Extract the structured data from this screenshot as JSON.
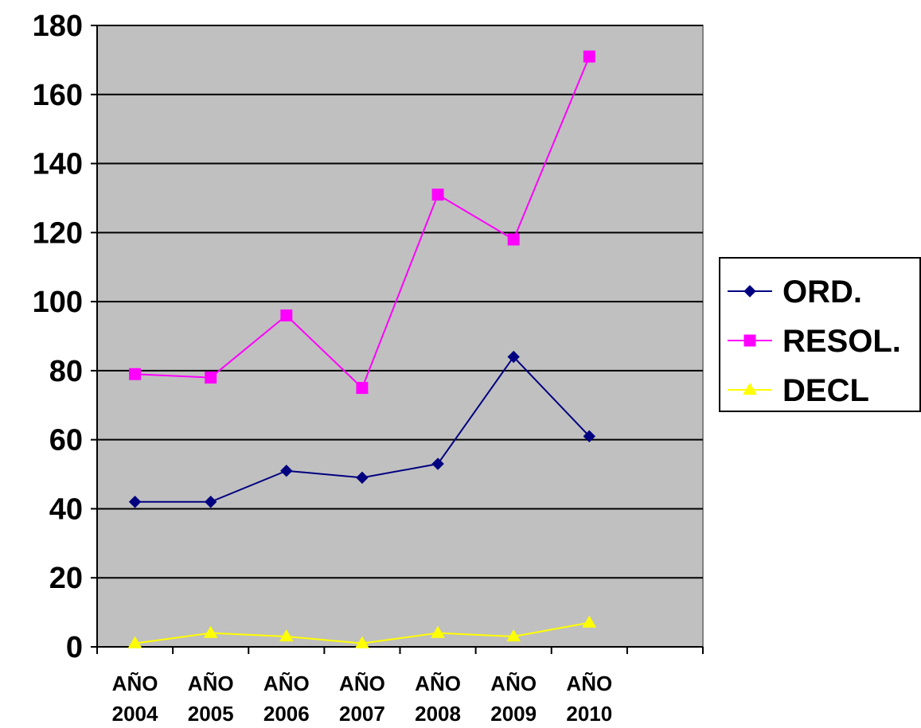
{
  "chart_data": {
    "type": "line",
    "categories": [
      [
        "AÑO",
        "2004"
      ],
      [
        "AÑO",
        "2005"
      ],
      [
        "AÑO",
        "2006"
      ],
      [
        "AÑO",
        "2007"
      ],
      [
        "AÑO",
        "2008"
      ],
      [
        "AÑO",
        "2009"
      ],
      [
        "AÑO",
        "2010"
      ]
    ],
    "slots": 8,
    "series": [
      {
        "name": "ORD.",
        "values": [
          42,
          42,
          51,
          49,
          53,
          84,
          61
        ],
        "color": "#000080",
        "marker": "diamond"
      },
      {
        "name": "RESOL.",
        "values": [
          79,
          78,
          96,
          75,
          131,
          118,
          171
        ],
        "color": "#FF00FF",
        "marker": "square"
      },
      {
        "name": "DECL",
        "values": [
          1,
          4,
          3,
          1,
          4,
          3,
          7
        ],
        "color": "#FFFF00",
        "marker": "triangle"
      }
    ],
    "ylim": [
      0,
      180
    ],
    "yticks": [
      0,
      20,
      40,
      60,
      80,
      100,
      120,
      140,
      160,
      180
    ],
    "grid": true,
    "legend": "right",
    "plot_background": "#C0C0C0",
    "title": "",
    "xlabel": "",
    "ylabel": ""
  }
}
